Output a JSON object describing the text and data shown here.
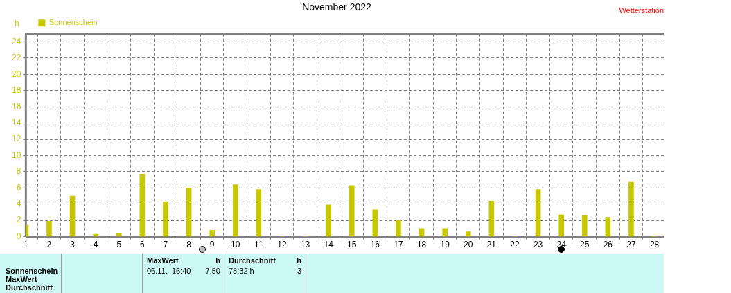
{
  "chart_data": {
    "type": "bar",
    "title": "November 2022",
    "ylabel": "h",
    "x": [
      1,
      2,
      3,
      4,
      5,
      6,
      7,
      8,
      9,
      10,
      11,
      12,
      13,
      14,
      15,
      16,
      17,
      18,
      19,
      20,
      21,
      22,
      23,
      24,
      25,
      26,
      27,
      28
    ],
    "series": [
      {
        "name": "Sonnenschein",
        "color": "#c8c800",
        "values": [
          1.4,
          1.9,
          5.0,
          0.3,
          0.4,
          7.7,
          4.3,
          6.0,
          0.8,
          6.4,
          5.8,
          0.1,
          0.1,
          3.9,
          6.3,
          3.3,
          2.0,
          1.0,
          1.0,
          0.6,
          4.4,
          0.1,
          5.8,
          2.7,
          2.6,
          2.3,
          6.7,
          0.1
        ]
      }
    ],
    "xlim": [
      1,
      28.4
    ],
    "xticks": [
      1,
      2,
      3,
      4,
      5,
      6,
      7,
      8,
      9,
      10,
      11,
      12,
      13,
      14,
      15,
      16,
      17,
      18,
      19,
      20,
      21,
      22,
      23,
      24,
      25,
      26,
      27,
      28
    ],
    "ylim": [
      0,
      25
    ],
    "yticks": [
      0,
      2,
      4,
      6,
      8,
      10,
      12,
      14,
      16,
      18,
      20,
      22,
      24
    ],
    "grid": true,
    "legend": "top left",
    "annotations": [
      "Wetterstation",
      "Sonnenschein",
      "MaxWert",
      "Durchschnitt",
      "MaxWert",
      "h",
      "Durchschnitt",
      "h",
      "06.11.  16:40",
      "7.50",
      "78:32 h",
      "3"
    ]
  }
}
